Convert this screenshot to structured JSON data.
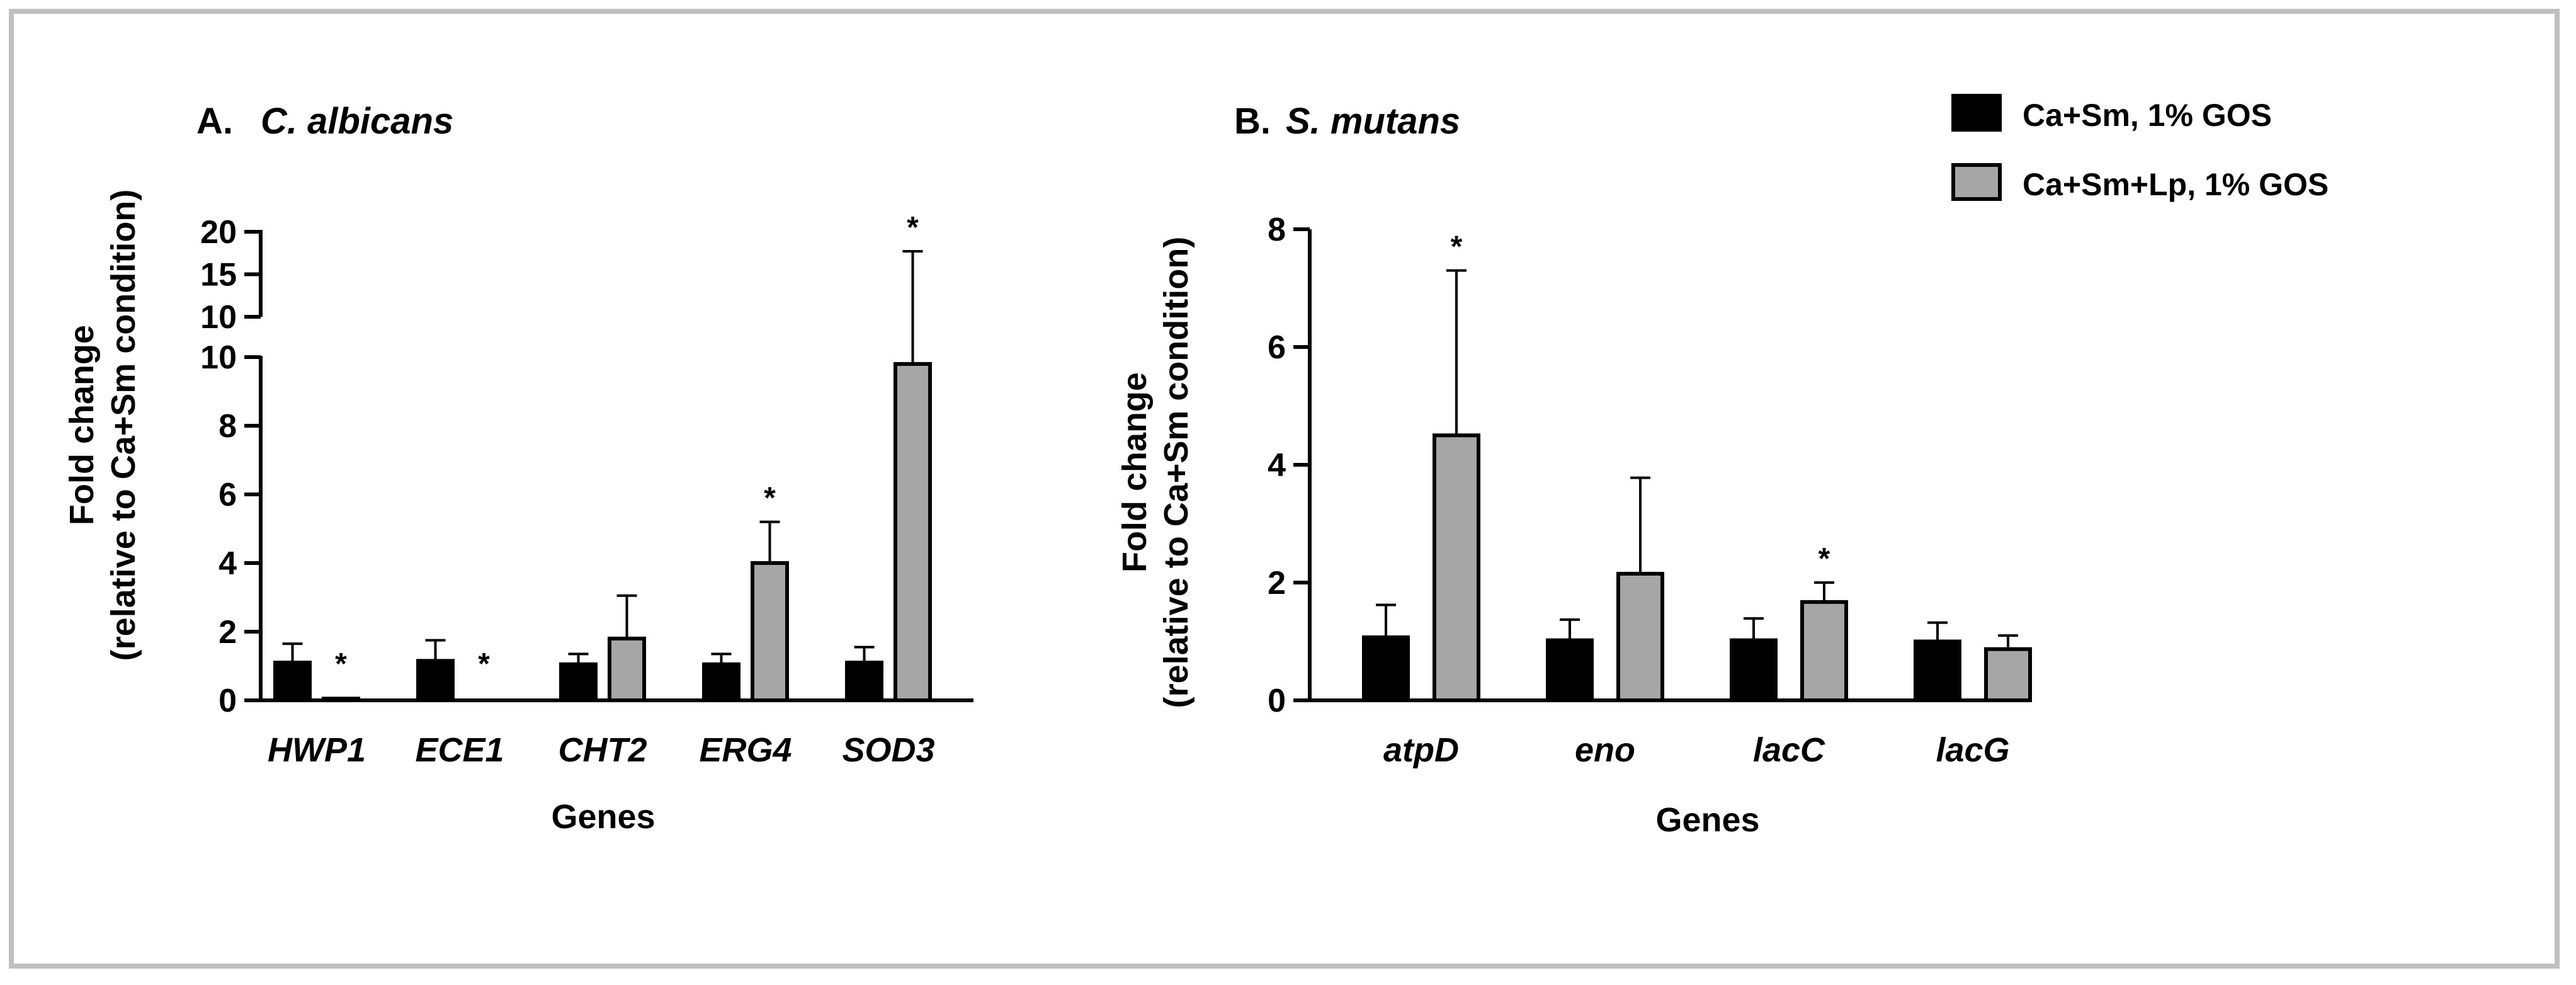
{
  "colors": {
    "series1": "#000000",
    "series2": "#a6a6a6",
    "frame": "#c0c0c0"
  },
  "legend": {
    "location": "top-right",
    "items": [
      "Ca+Sm, 1% GOS",
      "Ca+Sm+Lp, 1% GOS"
    ]
  },
  "chart_data": [
    {
      "type": "bar",
      "panel_label": "A.",
      "title": "C. albicans",
      "xlabel": "Genes",
      "ylabel": [
        "Fold change",
        "(relative to Ca+Sm condition)"
      ],
      "categories": [
        "HWP1",
        "ECE1",
        "CHT2",
        "ERG4",
        "SOD3"
      ],
      "ylim": [
        0,
        20
      ],
      "axis_break": {
        "lower_range": [
          0,
          10
        ],
        "upper_range": [
          10,
          20
        ]
      },
      "yticks_lower": [
        "0",
        "2",
        "4",
        "6",
        "8",
        "10"
      ],
      "yticks_upper": [
        "10",
        "15",
        "20"
      ],
      "series": [
        {
          "name": "Ca+Sm, 1% GOS",
          "values": [
            1.1,
            1.15,
            1.05,
            1.05,
            1.1
          ],
          "errors": [
            0.55,
            0.6,
            0.3,
            0.3,
            0.45
          ]
        },
        {
          "name": "Ca+Sm+Lp, 1% GOS",
          "values": [
            0.05,
            0.0,
            1.8,
            4.0,
            9.8
          ],
          "errors": [
            0.0,
            0.0,
            1.25,
            1.2,
            7.9
          ]
        }
      ],
      "significance": [
        "*",
        "*",
        "",
        "*",
        "*"
      ]
    },
    {
      "type": "bar",
      "panel_label": "B.",
      "title": "S. mutans",
      "xlabel": "Genes",
      "ylabel": [
        "Fold change",
        "(relative to Ca+Sm condition)"
      ],
      "categories": [
        "atpD",
        "eno",
        "lacC",
        "lacG"
      ],
      "ylim": [
        0,
        8
      ],
      "yticks": [
        "0",
        "2",
        "4",
        "6",
        "8"
      ],
      "series": [
        {
          "name": "Ca+Sm, 1% GOS",
          "values": [
            1.07,
            1.02,
            1.02,
            1.0
          ],
          "errors": [
            0.55,
            0.35,
            0.37,
            0.32
          ]
        },
        {
          "name": "Ca+Sm+Lp, 1% GOS",
          "values": [
            4.5,
            2.15,
            1.67,
            0.87
          ],
          "errors": [
            2.8,
            1.63,
            0.33,
            0.23
          ]
        }
      ],
      "significance": [
        "*",
        "",
        "*",
        ""
      ]
    }
  ]
}
